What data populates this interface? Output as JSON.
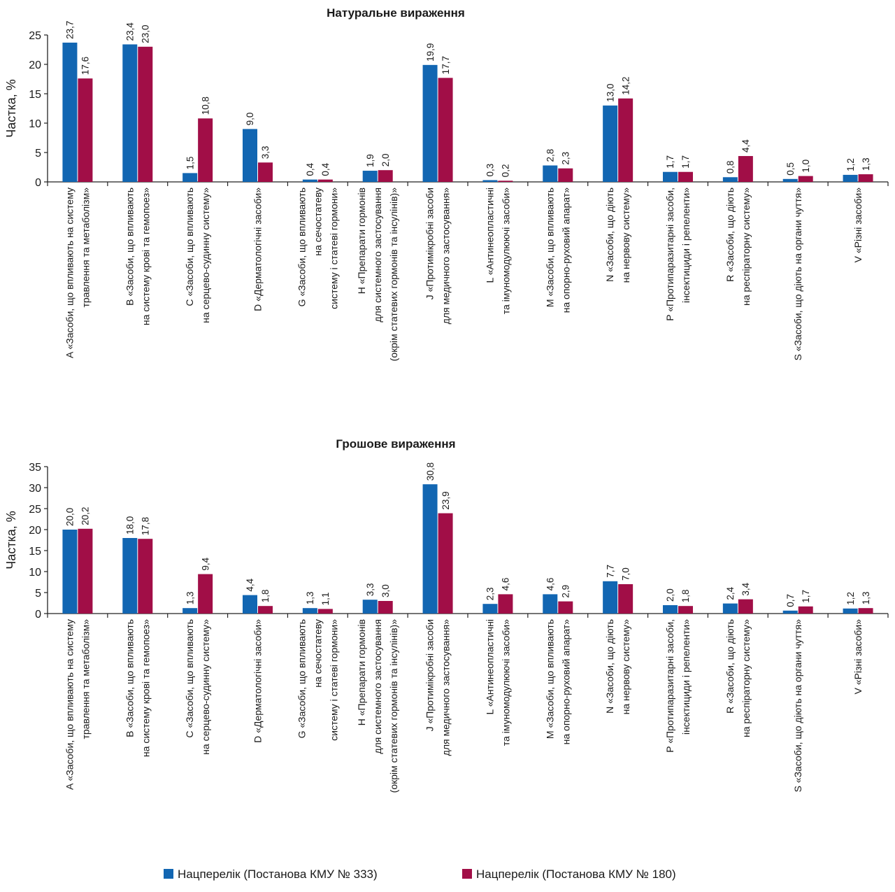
{
  "colors": {
    "s1": "#1266b2",
    "s2": "#a10e47",
    "axis": "#222222"
  },
  "legend": [
    "Нацперелік (Постанова КМУ № 333)",
    "Нацперелік (Постанова КМУ № 180)"
  ],
  "chart_data": [
    {
      "type": "bar",
      "title": "Натуральне вираження",
      "ylabel": "Частка, %",
      "ylim": [
        0,
        25
      ],
      "yticks": [
        "0",
        "5",
        "10",
        "15",
        "20",
        "25"
      ],
      "categories": [
        [
          "A «Засоби, що впливають на систему",
          "травлення та метаболізм»"
        ],
        [
          "B «Засоби, що впливають",
          "на систему крові та гемопоез»"
        ],
        [
          "C «Засоби, що впливають",
          "на серцево-судинну систему»"
        ],
        [
          "D «Дерматологічні засоби»"
        ],
        [
          "G «Засоби, що впливають",
          "на сечостатеву",
          "систему і статеві гормони»"
        ],
        [
          "H «Препарати гормонів",
          "для системного застосування",
          "(окрім статевих гормонів та інсулінів)»"
        ],
        [
          "J «Протимікробні засоби",
          "для медичного застосування»"
        ],
        [
          "L «Антинеопластичні",
          "та імуномодулюючі засоби»"
        ],
        [
          "M «Засоби, що впливають",
          "на опорно-руховий  апарат»"
        ],
        [
          "N «Засоби, що діють",
          "на нервову систему»"
        ],
        [
          "P «Протипаразитарні засоби,",
          "інсектициди і репеленти»"
        ],
        [
          "R «Засоби, що діють",
          "на респіраторну систему»"
        ],
        [
          "S «Засоби, що діють на органи чуття»"
        ],
        [
          "V «Різні засоби»"
        ]
      ],
      "series": [
        {
          "name": "Нацперелік (Постанова КМУ № 333)",
          "values": [
            23.7,
            23.4,
            1.5,
            9.0,
            0.4,
            1.9,
            19.9,
            0.3,
            2.8,
            13.0,
            1.7,
            0.8,
            0.5,
            1.2
          ],
          "labels": [
            "23,7",
            "23,4",
            "1,5",
            "9,0",
            "0,4",
            "1,9",
            "19,9",
            "0,3",
            "2,8",
            "13,0",
            "1,7",
            "0,8",
            "0,5",
            "1,2"
          ]
        },
        {
          "name": "Нацперелік (Постанова КМУ № 180)",
          "values": [
            17.6,
            23.0,
            10.8,
            3.3,
            0.4,
            2.0,
            17.7,
            0.2,
            2.3,
            14.2,
            1.7,
            4.4,
            1.0,
            1.3
          ],
          "labels": [
            "17,6",
            "23,0",
            "10,8",
            "3,3",
            "0,4",
            "2,0",
            "17,7",
            "0,2",
            "2,3",
            "14,2",
            "1,7",
            "4,4",
            "1,0",
            "1,3"
          ]
        }
      ]
    },
    {
      "type": "bar",
      "title": "Грошове вираження",
      "ylabel": "Частка, %",
      "ylim": [
        0,
        35
      ],
      "yticks": [
        "0",
        "5",
        "10",
        "15",
        "20",
        "25",
        "30",
        "35"
      ],
      "categories": [
        [
          "A «Засоби, що впливають на систему",
          "травлення та метаболізм»"
        ],
        [
          "B «Засоби, що впливають",
          "на систему крові та гемопоез»"
        ],
        [
          "C «Засоби, що впливають",
          "на серцево-судинну систему»"
        ],
        [
          "D «Дерматологічні засоби»"
        ],
        [
          "G «Засоби, що впливають",
          "на сечостатеву",
          "систему і статеві гормони»"
        ],
        [
          "H «Препарати гормонів",
          "для системного застосування",
          "(окрім статевих гормонів та інсулінів)»"
        ],
        [
          "J «Протимікробні засоби",
          "для медичного застосування»"
        ],
        [
          "L «Антинеопластичні",
          "та імуномодулюючі засоби»"
        ],
        [
          "M «Засоби, що впливають",
          "на опорно-руховий  апарат»"
        ],
        [
          "N «Засоби, що діють",
          "на нервову систему»"
        ],
        [
          "P «Протипаразитарні засоби,",
          "інсектициди і репеленти»"
        ],
        [
          "R «Засоби, що діють",
          "на респіраторну систему»"
        ],
        [
          "S «Засоби, що діють на органи чуття»"
        ],
        [
          "V «Різні засоби»"
        ]
      ],
      "series": [
        {
          "name": "Нацперелік (Постанова КМУ № 333)",
          "values": [
            20.0,
            18.0,
            1.3,
            4.4,
            1.3,
            3.3,
            30.8,
            2.3,
            4.6,
            7.7,
            2.0,
            2.4,
            0.7,
            1.2
          ],
          "labels": [
            "20,0",
            "18,0",
            "1,3",
            "4,4",
            "1,3",
            "3,3",
            "30,8",
            "2,3",
            "4,6",
            "7,7",
            "2,0",
            "2,4",
            "0,7",
            "1,2"
          ]
        },
        {
          "name": "Нацперелік (Постанова КМУ № 180)",
          "values": [
            20.2,
            17.8,
            9.4,
            1.8,
            1.1,
            3.0,
            23.9,
            4.6,
            2.9,
            7.0,
            1.8,
            3.4,
            1.7,
            1.3
          ],
          "labels": [
            "20,2",
            "17,8",
            "9,4",
            "1,8",
            "1,1",
            "3,0",
            "23,9",
            "4,6",
            "2,9",
            "7,0",
            "1,8",
            "3,4",
            "1,7",
            "1,3"
          ]
        }
      ]
    }
  ]
}
